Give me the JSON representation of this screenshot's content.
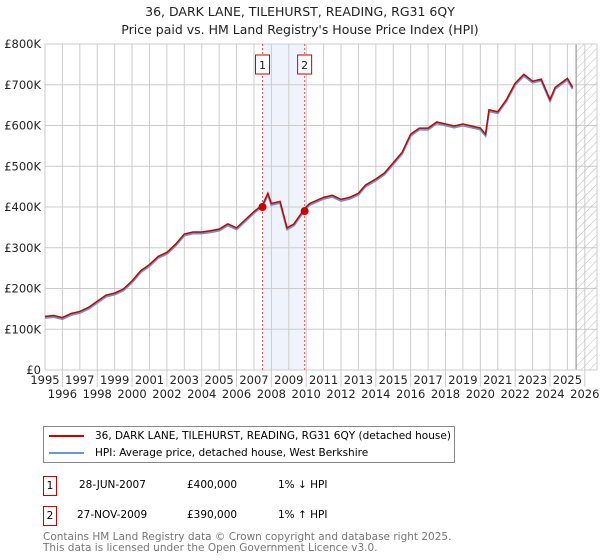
{
  "title": "36, DARK LANE, TILEHURST, READING, RG31 6QY",
  "subtitle": "Price paid vs. HM Land Registry's House Price Index (HPI)",
  "legend": [
    {
      "label": "36, DARK LANE, TILEHURST, READING, RG31 6QY (detached house)",
      "color": "#cc0000"
    },
    {
      "label": "HPI: Average price, detached house, West Berkshire",
      "color": "#6699cc"
    }
  ],
  "sales": [
    {
      "num": "1",
      "date": "28-JUN-2007",
      "price": "£400,000",
      "hpi": "1% ↓ HPI"
    },
    {
      "num": "2",
      "date": "27-NOV-2009",
      "price": "£390,000",
      "hpi": "1% ↑ HPI"
    }
  ],
  "footer": [
    "Contains HM Land Registry data © Crown copyright and database right 2025.",
    "This data is licensed under the Open Government Licence v3.0."
  ],
  "chart_data": {
    "type": "line",
    "xlim": [
      1995,
      2026.7
    ],
    "ylim": [
      0,
      800000
    ],
    "xticks": [
      "1995",
      "1996",
      "1997",
      "1998",
      "1999",
      "2000",
      "2001",
      "2002",
      "2003",
      "2004",
      "2005",
      "2006",
      "2007",
      "2008",
      "2009",
      "2010",
      "2011",
      "2012",
      "2013",
      "2014",
      "2015",
      "2016",
      "2017",
      "2018",
      "2019",
      "2020",
      "2021",
      "2022",
      "2023",
      "2024",
      "2025",
      "2026"
    ],
    "yticks": [
      {
        "v": 0,
        "l": "£0"
      },
      {
        "v": 100000,
        "l": "£100K"
      },
      {
        "v": 200000,
        "l": "£200K"
      },
      {
        "v": 300000,
        "l": "£300K"
      },
      {
        "v": 400000,
        "l": "£400K"
      },
      {
        "v": 500000,
        "l": "£500K"
      },
      {
        "v": 600000,
        "l": "£600K"
      },
      {
        "v": 700000,
        "l": "£700K"
      },
      {
        "v": 800000,
        "l": "£800K"
      }
    ],
    "hpi": {
      "x": [
        1995,
        1995.5,
        1996,
        1996.5,
        1997,
        1997.5,
        1998,
        1998.5,
        1999,
        1999.5,
        2000,
        2000.5,
        2001,
        2001.5,
        2002,
        2002.5,
        2003,
        2003.5,
        2004,
        2004.5,
        2005,
        2005.5,
        2006,
        2006.5,
        2007,
        2007.5,
        2007.8,
        2008,
        2008.5,
        2008.9,
        2009.3,
        2009.9,
        2010.2,
        2011,
        2011.5,
        2012,
        2012.5,
        2013,
        2013.4,
        2014,
        2014.5,
        2015,
        2015.5,
        2016,
        2016.5,
        2017,
        2017.5,
        2018,
        2018.5,
        2019,
        2019.5,
        2020,
        2020.3,
        2020.5,
        2021,
        2021.5,
        2022,
        2022.5,
        2023,
        2023.5,
        2024,
        2024.3,
        2025,
        2025.3
      ],
      "y": [
        128000,
        130000,
        125000,
        135000,
        140000,
        150000,
        165000,
        180000,
        185000,
        195000,
        215000,
        240000,
        255000,
        275000,
        285000,
        305000,
        330000,
        335000,
        335000,
        338000,
        342000,
        355000,
        345000,
        365000,
        385000,
        402000,
        430000,
        405000,
        410000,
        345000,
        355000,
        392000,
        405000,
        420000,
        425000,
        415000,
        420000,
        430000,
        450000,
        465000,
        480000,
        505000,
        530000,
        575000,
        590000,
        590000,
        605000,
        600000,
        595000,
        600000,
        595000,
        590000,
        575000,
        635000,
        630000,
        660000,
        700000,
        722000,
        705000,
        710000,
        660000,
        690000,
        712000,
        690000
      ]
    },
    "sale_points": [
      {
        "x": 2007.49,
        "y": 400000,
        "label": "1"
      },
      {
        "x": 2009.91,
        "y": 390000,
        "label": "2"
      }
    ],
    "forecast_start": 2025.5
  }
}
